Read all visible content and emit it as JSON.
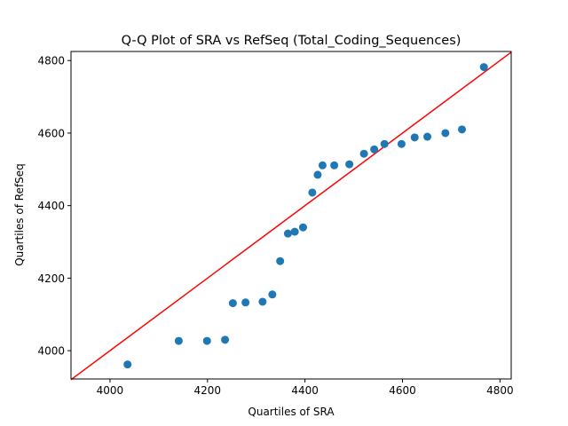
{
  "chart_data": {
    "type": "scatter",
    "title": "Q-Q Plot of SRA vs RefSeq (Total_Coding_Sequences)",
    "xlabel": "Quartiles of SRA",
    "ylabel": "Quartiles of RefSeq",
    "xlim": [
      3920,
      4823
    ],
    "ylim": [
      3922,
      4825
    ],
    "xticks": [
      4000,
      4200,
      4400,
      4600,
      4800
    ],
    "yticks": [
      4000,
      4200,
      4400,
      4600,
      4800
    ],
    "grid": false,
    "colors": {
      "points": "#1f77b4",
      "reference_line": "#ff0000"
    },
    "reference_line": {
      "x": [
        3920,
        4823
      ],
      "y": [
        3920,
        4823
      ]
    },
    "series": [
      {
        "x": [
          4036,
          4141,
          4199,
          4236,
          4252,
          4278,
          4313,
          4333,
          4349,
          4365,
          4379,
          4396,
          4415,
          4426,
          4436,
          4460,
          4491,
          4521,
          4542,
          4563,
          4598,
          4625,
          4651,
          4688,
          4722,
          4767
        ],
        "y": [
          3962,
          4027,
          4027,
          4030,
          4131,
          4133,
          4135,
          4155,
          4247,
          4323,
          4328,
          4340,
          4436,
          4485,
          4511,
          4511,
          4514,
          4543,
          4555,
          4570,
          4570,
          4588,
          4590,
          4600,
          4610,
          4782
        ]
      }
    ]
  }
}
